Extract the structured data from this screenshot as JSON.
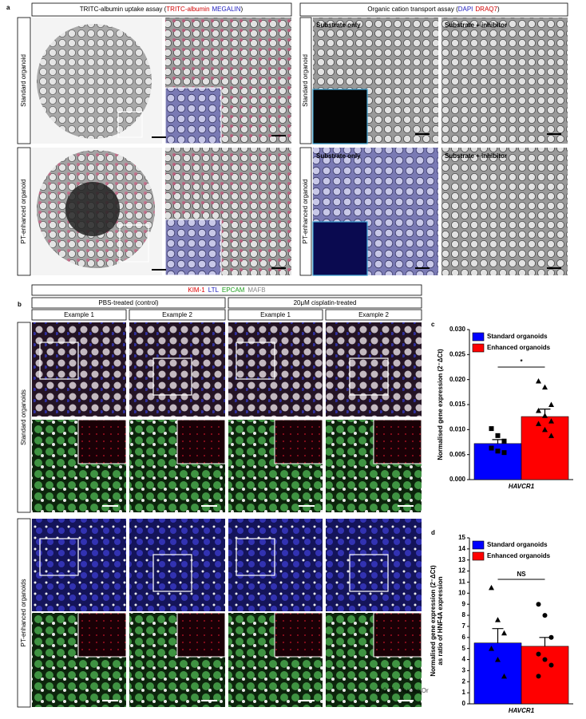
{
  "panel_a": {
    "letter": "a",
    "left_title_prefix": "TRITC-albumin uptake assay (",
    "left_title_red": "TRITC-albumin",
    "left_title_blue": "MEGALIN",
    "left_title_suffix": ")",
    "right_title_prefix": "Organic cation transport assay (",
    "right_title_blue": "DAPI",
    "right_title_red": "DRAQ7",
    "right_title_suffix": ")",
    "row_labels": [
      "Standard organoid",
      "PT-enhanced organoid",
      "Standard organoid",
      "PT-enhanced organoid"
    ],
    "image_labels": [
      "Substrate only",
      "Substrate + inhibitor",
      "Substrate only",
      "Substrate + inhibitor"
    ]
  },
  "panel_b": {
    "letter": "b",
    "stain_kim1": "KIM-1",
    "stain_ltl": "LTL",
    "stain_epcam": "EPCAM",
    "stain_mafb": "MAFB",
    "conditions": [
      "PBS-treated (control)",
      "20μM cisplatin-treated"
    ],
    "examples": [
      "Example 1",
      "Example 2",
      "Example 1",
      "Example 2"
    ],
    "row_labels": [
      "Standard organoids",
      "PT-enhanced organoids"
    ]
  },
  "chart_data": [
    {
      "type": "bar",
      "panel": "c",
      "ylabel": "Normalised gene expression (2⁻ΔCt)",
      "categories": [
        "HAVCR1"
      ],
      "ylim": [
        0,
        0.03
      ],
      "yticks": [
        {
          "value": 0,
          "label": "0.000"
        },
        {
          "value": 0.005,
          "label": "0.005"
        },
        {
          "value": 0.01,
          "label": "0.010"
        },
        {
          "value": 0.015,
          "label": "0.015"
        },
        {
          "value": 0.02,
          "label": "0.020"
        },
        {
          "value": 0.025,
          "label": "0.025"
        },
        {
          "value": 0.03,
          "label": "0.030"
        }
      ],
      "annotation": "*",
      "series": [
        {
          "name": "Standard organoids",
          "color": "#0000ff",
          "marker": "square",
          "values": [
            0.0072
          ],
          "errors": [
            0.0008
          ],
          "points": [
            0.0102,
            0.0088,
            0.0077,
            0.0063,
            0.0057,
            0.0054
          ]
        },
        {
          "name": "Enhanced organoids",
          "color": "#ff0000",
          "marker": "triangle",
          "values": [
            0.0126
          ],
          "errors": [
            0.0015
          ],
          "points": [
            0.0197,
            0.0185,
            0.015,
            0.0138,
            0.0128,
            0.0117,
            0.0112,
            0.01,
            0.0088
          ]
        }
      ]
    },
    {
      "type": "bar",
      "panel": "d",
      "ylabel": [
        "Normalised gene expression (2⁻ΔCt)",
        "as ratio of HNF4A expression"
      ],
      "categories": [
        "HAVCR1"
      ],
      "ylim": [
        0,
        15
      ],
      "yticks": [
        0,
        1,
        2,
        3,
        4,
        5,
        6,
        7,
        8,
        9,
        10,
        11,
        12,
        13,
        14,
        15
      ],
      "annotation": "NS",
      "series": [
        {
          "name": "Standard organoids",
          "color": "#0000ff",
          "marker": "triangle",
          "values": [
            5.5
          ],
          "errors": [
            1.3
          ],
          "points": [
            10.5,
            7.6,
            6.4,
            5.0,
            4.0,
            2.5
          ]
        },
        {
          "name": "Enhanced organoids",
          "color": "#ff0000",
          "marker": "circle",
          "values": [
            5.2
          ],
          "errors": [
            0.8
          ],
          "points": [
            9.0,
            8.0,
            6.0,
            4.5,
            4.0,
            3.5,
            2.5
          ]
        }
      ]
    }
  ],
  "watermark": "公众号 · Hunter-Or"
}
